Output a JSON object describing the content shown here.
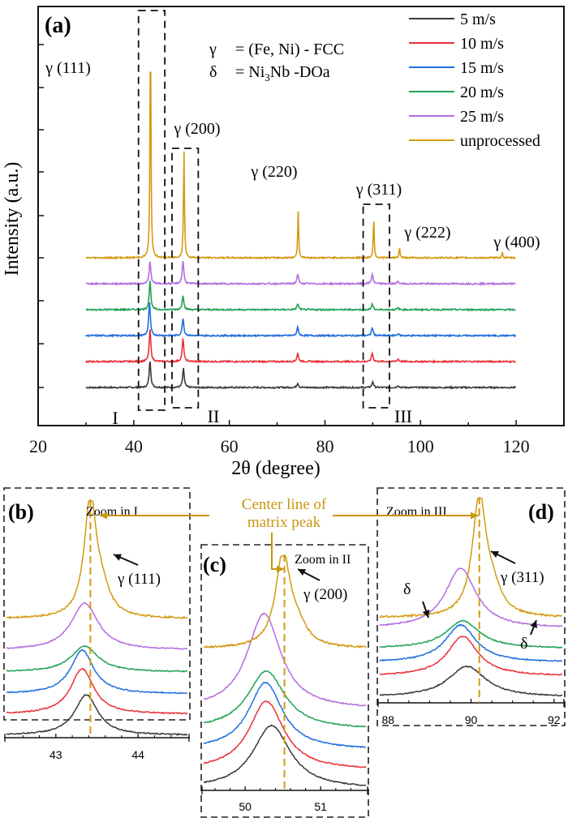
{
  "colors": {
    "5 m/s": "#3a3a3a",
    "10 m/s": "#e8313a",
    "15 m/s": "#1f6fdc",
    "20 m/s": "#23a256",
    "25 m/s": "#b46de0",
    "unprocessed": "#d39a12",
    "annotation": "#c9960f",
    "frame": "#111111"
  },
  "chart_data": [
    {
      "id": "a",
      "panel_label": "(a)",
      "type": "line",
      "title": "",
      "xlabel": "2θ (degree)",
      "ylabel": "Intensity (a.u.)",
      "xlim": [
        20,
        130
      ],
      "x_ticks": [
        20,
        40,
        60,
        80,
        100,
        120
      ],
      "x_range_data": [
        30,
        120
      ],
      "grid": false,
      "legend_position": "top-right",
      "legend": [
        "5 m/s",
        "10 m/s",
        "15 m/s",
        "20 m/s",
        "25 m/s",
        "unprocessed"
      ],
      "offset_stacked": true,
      "series": [
        {
          "name": "5 m/s",
          "baseline": 0,
          "peaks": [
            {
              "x": 43.4,
              "h": 1.3
            },
            {
              "x": 50.4,
              "h": 0.9
            },
            {
              "x": 74.3,
              "h": 0.22
            },
            {
              "x": 90.0,
              "h": 0.28
            },
            {
              "x": 95.3,
              "h": 0.1
            }
          ]
        },
        {
          "name": "10 m/s",
          "baseline": 1,
          "peaks": [
            {
              "x": 43.4,
              "h": 1.55
            },
            {
              "x": 50.3,
              "h": 1.1
            },
            {
              "x": 74.3,
              "h": 0.4
            },
            {
              "x": 89.9,
              "h": 0.4
            },
            {
              "x": 95.3,
              "h": 0.12
            }
          ]
        },
        {
          "name": "15 m/s",
          "baseline": 2,
          "peaks": [
            {
              "x": 43.3,
              "h": 1.6
            },
            {
              "x": 50.3,
              "h": 0.85
            },
            {
              "x": 74.3,
              "h": 0.4
            },
            {
              "x": 89.9,
              "h": 0.38
            },
            {
              "x": 95.3,
              "h": 0.1
            }
          ]
        },
        {
          "name": "20 m/s",
          "baseline": 3,
          "peaks": [
            {
              "x": 43.4,
              "h": 1.4
            },
            {
              "x": 50.3,
              "h": 0.7
            },
            {
              "x": 74.3,
              "h": 0.28
            },
            {
              "x": 89.9,
              "h": 0.25
            },
            {
              "x": 95.3,
              "h": 0.08
            }
          ]
        },
        {
          "name": "25 m/s",
          "baseline": 4,
          "peaks": [
            {
              "x": 43.4,
              "h": 1.1
            },
            {
              "x": 50.3,
              "h": 1.1
            },
            {
              "x": 74.3,
              "h": 0.45
            },
            {
              "x": 89.9,
              "h": 0.45
            },
            {
              "x": 95.3,
              "h": 0.1
            }
          ]
        },
        {
          "name": "unprocessed",
          "baseline": 5,
          "peaks": [
            {
              "x": 43.5,
              "h": 11.0
            },
            {
              "x": 50.5,
              "h": 5.2
            },
            {
              "x": 74.4,
              "h": 2.2
            },
            {
              "x": 90.2,
              "h": 1.9
            },
            {
              "x": 95.6,
              "h": 0.5
            },
            {
              "x": 117.1,
              "h": 0.25
            }
          ]
        }
      ],
      "peak_labels": [
        {
          "text": "γ (111)",
          "x": 43.4
        },
        {
          "text": "γ (200)",
          "x": 50.4
        },
        {
          "text": "γ (220)",
          "x": 74.4
        },
        {
          "text": "γ (311)",
          "x": 90.2
        },
        {
          "text": "γ (222)",
          "x": 95.6
        },
        {
          "text": "γ (400)",
          "x": 117.1
        }
      ],
      "zoom_regions": [
        {
          "label": "I",
          "x_from": 41,
          "x_to": 46.5
        },
        {
          "label": "II",
          "x_from": 48,
          "x_to": 53.5
        },
        {
          "label": "III",
          "x_from": 88,
          "x_to": 93.5
        }
      ],
      "phase_legend": [
        {
          "symbol": "γ",
          "text": "= (Fe, Ni) - FCC"
        },
        {
          "symbol": "δ",
          "text": "= Ni",
          "sub": "3",
          "text2": "Nb   -DOa"
        }
      ]
    },
    {
      "id": "b",
      "panel_label": "(b)",
      "type": "line",
      "caption": "Zoom in I",
      "peak_label": "γ (111)",
      "xlim": [
        42.4,
        44.6
      ],
      "x_ticks": [
        43,
        44
      ],
      "center_line_x": 43.42,
      "series": [
        {
          "name": "5 m/s",
          "peak_x": 43.37,
          "width": 0.17
        },
        {
          "name": "10 m/s",
          "peak_x": 43.32,
          "width": 0.17
        },
        {
          "name": "15 m/s",
          "peak_x": 43.32,
          "width": 0.17
        },
        {
          "name": "20 m/s",
          "peak_x": 43.35,
          "width": 0.2
        },
        {
          "name": "25 m/s",
          "peak_x": 43.35,
          "width": 0.2
        },
        {
          "name": "unprocessed",
          "peak_x": 43.42,
          "width": 0.09
        }
      ]
    },
    {
      "id": "c",
      "panel_label": "(c)",
      "type": "line",
      "caption": "Zoom in II",
      "peak_label": "γ (200)",
      "xlim": [
        49.45,
        51.6
      ],
      "x_ticks": [
        50,
        51
      ],
      "center_line_x": 50.52,
      "series": [
        {
          "name": "5 m/s",
          "peak_x": 50.35,
          "width": 0.3
        },
        {
          "name": "10 m/s",
          "peak_x": 50.28,
          "width": 0.28
        },
        {
          "name": "15 m/s",
          "peak_x": 50.27,
          "width": 0.27
        },
        {
          "name": "20 m/s",
          "peak_x": 50.28,
          "width": 0.3
        },
        {
          "name": "25 m/s",
          "peak_x": 50.25,
          "width": 0.27
        },
        {
          "name": "unprocessed",
          "peak_x": 50.5,
          "width": 0.12
        }
      ]
    },
    {
      "id": "d",
      "panel_label": "(d)",
      "type": "line",
      "caption": "Zoom in III",
      "peak_label": "γ (311)",
      "delta_label": "δ",
      "xlim": [
        87.8,
        92.2
      ],
      "x_ticks": [
        88,
        90,
        92
      ],
      "center_line_x": 90.2,
      "series": [
        {
          "name": "5 m/s",
          "peak_x": 89.9,
          "width": 0.55
        },
        {
          "name": "10 m/s",
          "peak_x": 89.8,
          "width": 0.45
        },
        {
          "name": "15 m/s",
          "peak_x": 89.75,
          "width": 0.45
        },
        {
          "name": "20 m/s",
          "peak_x": 89.8,
          "width": 0.5
        },
        {
          "name": "25 m/s",
          "peak_x": 89.75,
          "width": 0.45
        },
        {
          "name": "unprocessed",
          "peak_x": 90.2,
          "width": 0.2
        }
      ]
    }
  ],
  "center_line_label": [
    "Center line of",
    "matrix peak"
  ]
}
